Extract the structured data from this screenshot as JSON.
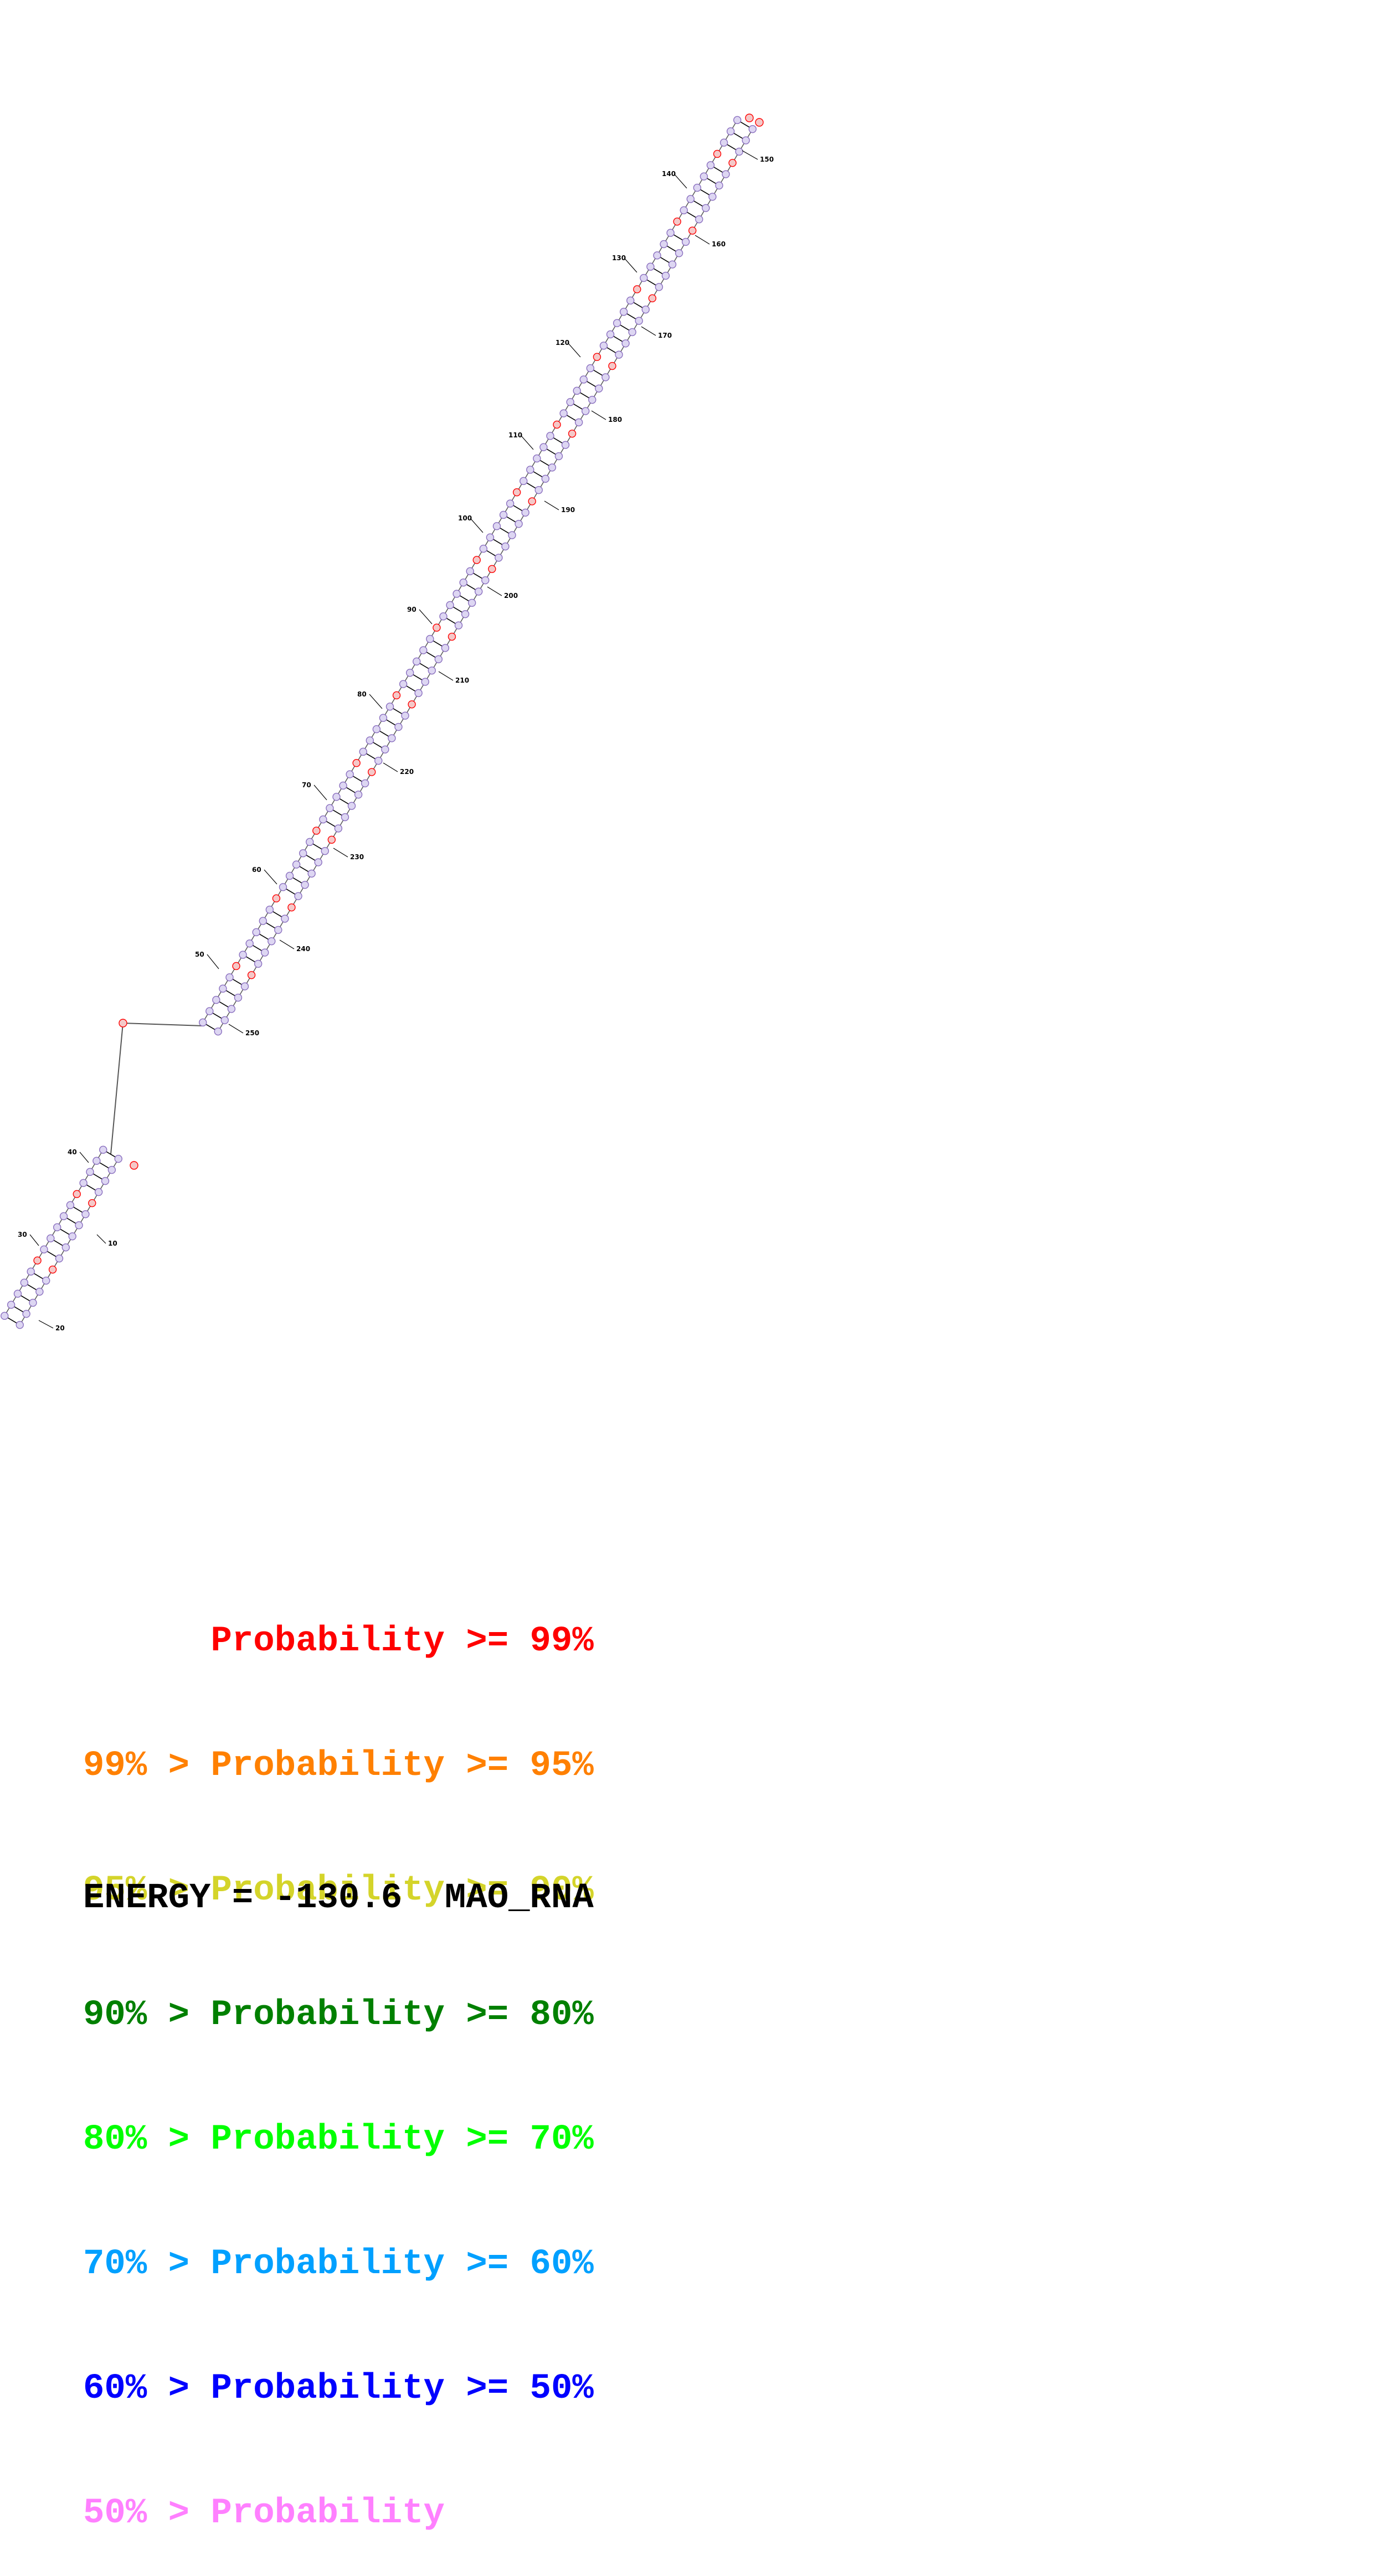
{
  "structure": {
    "colors": {
      "red": "#ff0000",
      "orange": "#ff8000",
      "yellow": "#d4d42a",
      "dark_green": "#008000",
      "green": "#00ff00",
      "light_blue": "#00a0ff",
      "blue": "#0000ff",
      "pink": "#ff80ff",
      "backbone": "#555555",
      "base_fill": "#ddd6f2",
      "base_stroke": "#8a6fbf"
    },
    "numbers": [
      "10",
      "20",
      "30",
      "40",
      "50",
      "60",
      "70",
      "80",
      "90",
      "100",
      "110",
      "120",
      "130",
      "140",
      "150",
      "160",
      "170",
      "180",
      "190",
      "200",
      "210",
      "220",
      "230",
      "240",
      "250"
    ]
  },
  "legend": [
    {
      "prefix": "    ",
      "text": "    Probability >= 99%",
      "color": "#ff0000"
    },
    {
      "prefix": "99% > ",
      "text": "Probability >= 95%",
      "color": "#ff8000"
    },
    {
      "prefix": "95% > ",
      "text": "Probability >= 90%",
      "color": "#d4d42a"
    },
    {
      "prefix": "90% > ",
      "text": "Probability >= 80%",
      "color": "#008000"
    },
    {
      "prefix": "80% > ",
      "text": "Probability >= 70%",
      "color": "#00ff00"
    },
    {
      "prefix": "70% > ",
      "text": "Probability >= 60%",
      "color": "#00a0ff"
    },
    {
      "prefix": "60% > ",
      "text": "Probability >= 50%",
      "color": "#0000ff"
    },
    {
      "prefix": "50% > ",
      "text": "Probability",
      "color": "#ff80ff"
    }
  ],
  "energy": {
    "label": "ENERGY = ",
    "value": "-130.6",
    "name": "MAO_RNA"
  }
}
